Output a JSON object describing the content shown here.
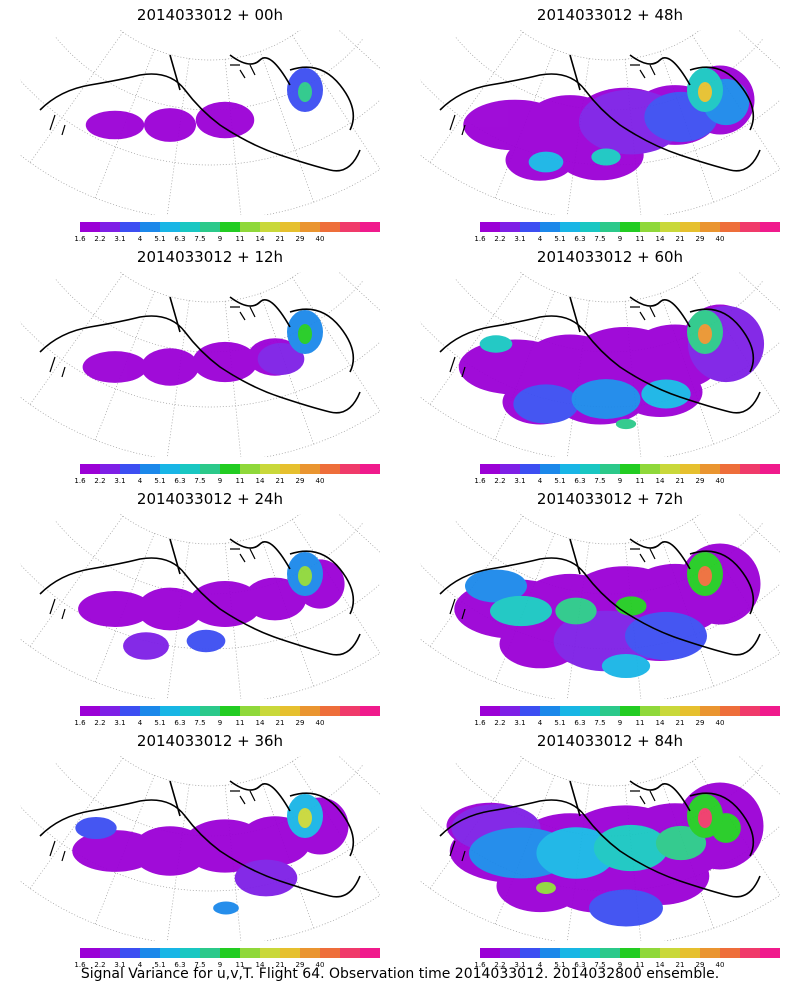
{
  "footer": "Signal Variance for u,v,T. Flight 64. Observation time 2014033012. 2014032800 ensemble.",
  "colorbar": {
    "colors": [
      "#9b00d6",
      "#7e1fe6",
      "#3c4ef2",
      "#1b88ea",
      "#18b5e6",
      "#19c7c2",
      "#2bc98a",
      "#22cc22",
      "#8fd83a",
      "#c9d83a",
      "#e6c02e",
      "#ea9530",
      "#ee6e3a",
      "#f03a6a",
      "#f01a8c"
    ],
    "labels": [
      "1.6",
      "2.2",
      "3.1",
      "4",
      "5.1",
      "6.3",
      "7.5",
      "9",
      "11",
      "14",
      "21",
      "29",
      "40"
    ]
  },
  "panels": [
    {
      "title": "2014033012 + 00h",
      "intensity": 0.05
    },
    {
      "title": "2014033012 + 48h",
      "intensity": 0.55
    },
    {
      "title": "2014033012 + 12h",
      "intensity": 0.12
    },
    {
      "title": "2014033012 + 60h",
      "intensity": 0.65
    },
    {
      "title": "2014033012 + 24h",
      "intensity": 0.22
    },
    {
      "title": "2014033012 + 72h",
      "intensity": 0.75
    },
    {
      "title": "2014033012 + 36h",
      "intensity": 0.35
    },
    {
      "title": "2014033012 + 84h",
      "intensity": 0.85
    }
  ]
}
